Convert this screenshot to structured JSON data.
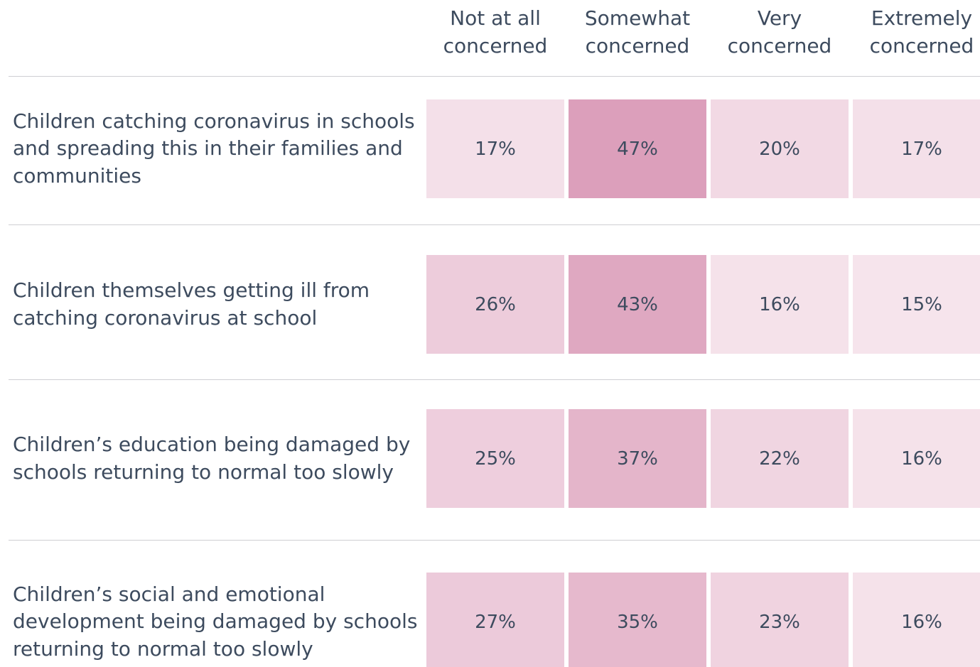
{
  "chart_data": {
    "type": "heatmap",
    "categories": [
      "Not at all concerned",
      "Somewhat concerned",
      "Very concerned",
      "Extremely concerned"
    ],
    "rows": [
      "Children catching coronavirus in schools and spreading this in their families and communities",
      "Children themselves getting ill from catching coronavirus at school",
      "Children’s education being damaged by schools returning to normal too slowly",
      "Children’s social and emotional development being damaged by schools returning to normal too slowly"
    ],
    "values": [
      [
        17,
        47,
        20,
        17
      ],
      [
        26,
        43,
        16,
        15
      ],
      [
        25,
        37,
        22,
        16
      ],
      [
        27,
        35,
        23,
        16
      ]
    ],
    "value_labels": [
      [
        "17%",
        "47%",
        "20%",
        "17%"
      ],
      [
        "26%",
        "43%",
        "16%",
        "15%"
      ],
      [
        "25%",
        "37%",
        "22%",
        "16%"
      ],
      [
        "27%",
        "35%",
        "23%",
        "16%"
      ]
    ],
    "color_range": [
      "#f6e4ec",
      "#dc9fbb"
    ]
  }
}
